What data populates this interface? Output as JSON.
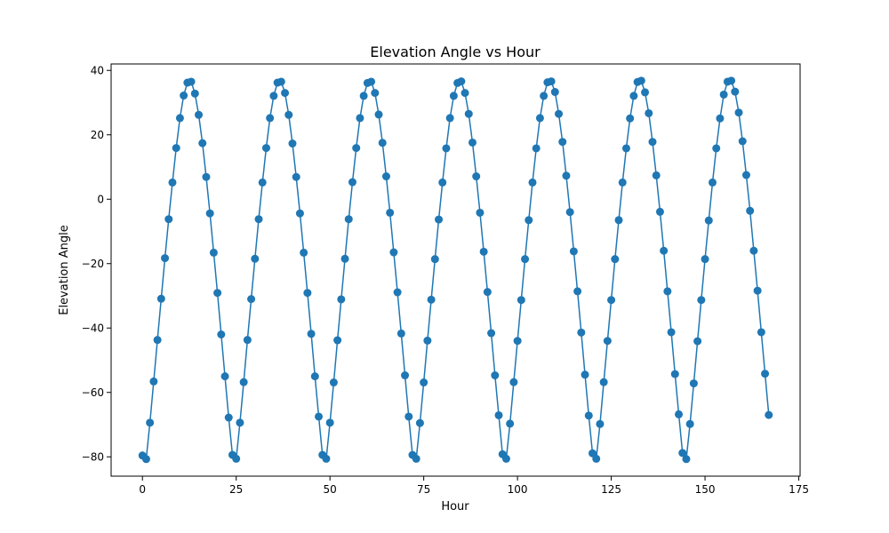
{
  "chart_data": {
    "type": "line",
    "title": "Elevation Angle vs Hour",
    "xlabel": "Hour",
    "ylabel": "Elevation Angle",
    "xlim": [
      -8.35,
      175.35
    ],
    "ylim": [
      -86,
      42
    ],
    "xticks": [
      0,
      25,
      50,
      75,
      100,
      125,
      150,
      175
    ],
    "yticks": [
      -80,
      -60,
      -40,
      -20,
      0,
      20,
      40
    ],
    "grid": false,
    "markers": true,
    "color": "#1f77b4",
    "series": [
      {
        "x": [
          0,
          1,
          2,
          3,
          4,
          5,
          6,
          7,
          8,
          9,
          10,
          11,
          12,
          13,
          14,
          15,
          16,
          17,
          18,
          19,
          20,
          21,
          22,
          23,
          24,
          25,
          26,
          27,
          28,
          29,
          30,
          31,
          32,
          33,
          34,
          35,
          36,
          37,
          38,
          39,
          40,
          41,
          42,
          43,
          44,
          45,
          46,
          47,
          48,
          49,
          50,
          51,
          52,
          53,
          54,
          55,
          56,
          57,
          58,
          59,
          60,
          61,
          62,
          63,
          64,
          65,
          66,
          67,
          68,
          69,
          70,
          71,
          72,
          73,
          74,
          75,
          76,
          77,
          78,
          79,
          80,
          81,
          82,
          83,
          84,
          85,
          86,
          87,
          88,
          89,
          90,
          91,
          92,
          93,
          94,
          95,
          96,
          97,
          98,
          99,
          100,
          101,
          102,
          103,
          104,
          105,
          106,
          107,
          108,
          109,
          110,
          111,
          112,
          113,
          114,
          115,
          116,
          117,
          118,
          119,
          120,
          121,
          122,
          123,
          124,
          125,
          126,
          127,
          128,
          129,
          130,
          131,
          132,
          133,
          134,
          135,
          136,
          137,
          138,
          139,
          140,
          141,
          142,
          143,
          144,
          145,
          146,
          147,
          148,
          149,
          150,
          151,
          152,
          153,
          154,
          155,
          156,
          157,
          158,
          159,
          160,
          161,
          162,
          163,
          164,
          165,
          166,
          167
        ],
        "y": [
          -79.6,
          -80.7,
          -69.4,
          -56.6,
          -43.7,
          -30.9,
          -18.3,
          -6.2,
          5.2,
          15.9,
          25.2,
          32.2,
          36.2,
          36.5,
          32.8,
          26.2,
          17.4,
          6.9,
          -4.4,
          -16.6,
          -29.1,
          -42.0,
          -55.0,
          -67.8,
          -79.4,
          -80.6,
          -69.4,
          -56.8,
          -43.7,
          -31.0,
          -18.5,
          -6.2,
          5.2,
          15.9,
          25.2,
          32.1,
          36.2,
          36.5,
          33.0,
          26.2,
          17.3,
          6.9,
          -4.4,
          -16.6,
          -29.1,
          -41.8,
          -55.0,
          -67.5,
          -79.4,
          -80.6,
          -69.4,
          -56.9,
          -43.8,
          -31.1,
          -18.5,
          -6.2,
          5.3,
          15.9,
          25.2,
          32.1,
          36.1,
          36.5,
          33.0,
          26.3,
          17.5,
          7.1,
          -4.2,
          -16.5,
          -28.9,
          -41.7,
          -54.7,
          -67.5,
          -79.4,
          -80.6,
          -69.5,
          -56.9,
          -43.9,
          -31.2,
          -18.6,
          -6.3,
          5.2,
          15.8,
          25.2,
          32.1,
          36.1,
          36.6,
          33.0,
          26.5,
          17.6,
          7.1,
          -4.2,
          -16.3,
          -28.8,
          -41.6,
          -54.7,
          -67.1,
          -79.2,
          -80.6,
          -69.7,
          -56.8,
          -44.0,
          -31.3,
          -18.6,
          -6.5,
          5.2,
          15.8,
          25.2,
          32.1,
          36.3,
          36.6,
          33.3,
          26.5,
          17.8,
          7.3,
          -4.0,
          -16.2,
          -28.6,
          -41.4,
          -54.5,
          -67.2,
          -78.9,
          -80.6,
          -69.8,
          -56.8,
          -44.0,
          -31.3,
          -18.6,
          -6.5,
          5.2,
          15.8,
          25.1,
          32.1,
          36.4,
          36.8,
          33.2,
          26.7,
          17.8,
          7.4,
          -3.9,
          -16.0,
          -28.6,
          -41.3,
          -54.3,
          -66.8,
          -78.8,
          -80.7,
          -69.8,
          -57.2,
          -44.1,
          -31.3,
          -18.6,
          -6.6,
          5.2,
          15.8,
          25.1,
          32.5,
          36.5,
          36.8,
          33.4,
          26.9,
          18.0,
          7.5,
          -3.6,
          -16.0,
          -28.4,
          -41.3,
          -54.2,
          -67.0
        ]
      }
    ]
  }
}
